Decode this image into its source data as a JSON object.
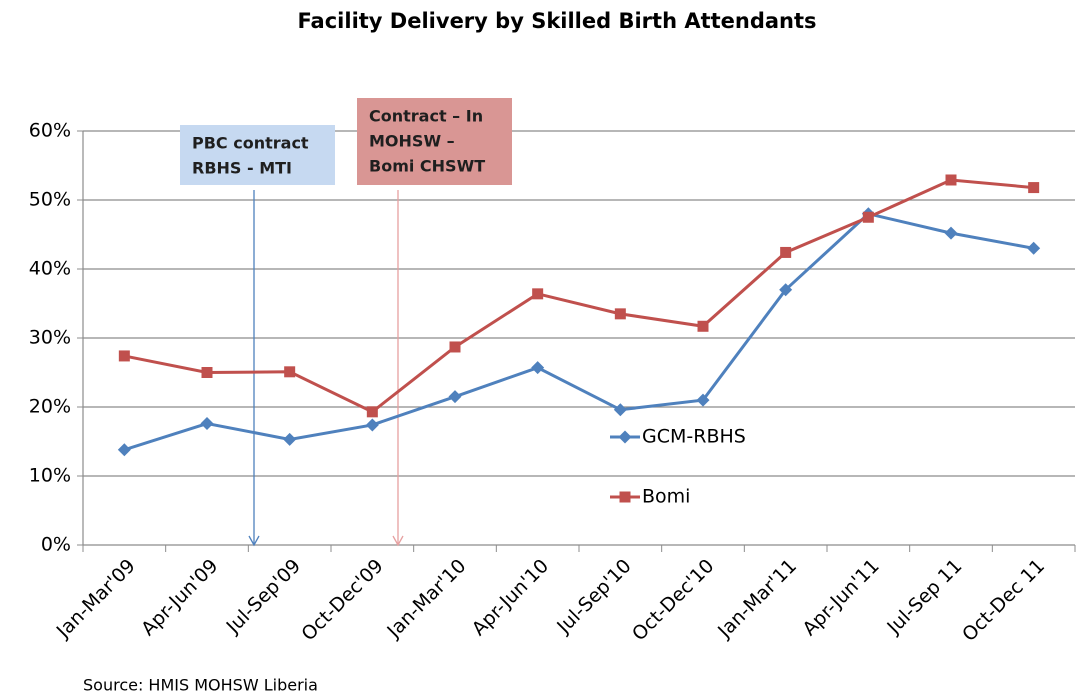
{
  "chart_data": {
    "type": "line",
    "title": "Facility Delivery by Skilled Birth Attendants",
    "categories": [
      "Jan-Mar'09",
      "Apr-Jun'09",
      "Jul-Sep'09",
      "Oct-Dec'09",
      "Jan-Mar'10",
      "Apr-Jun'10",
      "Jul-Sep'10",
      "Oct-Dec'10",
      "Jan-Mar'11",
      "Apr-Jun'11",
      "Jul-Sep 11",
      "Oct-Dec 11"
    ],
    "series": [
      {
        "name": "GCM-RBHS",
        "color": "#4f81bd",
        "marker": "diamond",
        "values": [
          13.8,
          17.6,
          15.3,
          17.4,
          21.5,
          25.7,
          19.6,
          21.0,
          37.0,
          48.0,
          45.2,
          43.0
        ]
      },
      {
        "name": "Bomi",
        "color": "#c0504d",
        "marker": "square",
        "values": [
          27.4,
          25.0,
          25.1,
          19.3,
          28.7,
          36.4,
          33.5,
          31.7,
          42.4,
          47.5,
          52.9,
          51.8
        ]
      }
    ],
    "ylim": [
      0,
      60
    ],
    "yticks": [
      {
        "value": 0,
        "label": "0%"
      },
      {
        "value": 10,
        "label": "10%"
      },
      {
        "value": 20,
        "label": "20%"
      },
      {
        "value": 30,
        "label": "30%"
      },
      {
        "value": 40,
        "label": "40%"
      },
      {
        "value": 50,
        "label": "50%"
      },
      {
        "value": 60,
        "label": "60%"
      }
    ],
    "grid": true,
    "annotations": [
      {
        "lines": [
          "PBC contract",
          "RBHS - MTI"
        ],
        "color": "#c6d9f1",
        "arrow_color": "#4f81bd"
      },
      {
        "lines": [
          "Contract – In",
          "MOHSW –",
          "Bomi CHSWT"
        ],
        "color": "#d99694",
        "arrow_color": "#e6a0a0"
      }
    ],
    "source": "Source: HMIS MOHSW Liberia"
  }
}
